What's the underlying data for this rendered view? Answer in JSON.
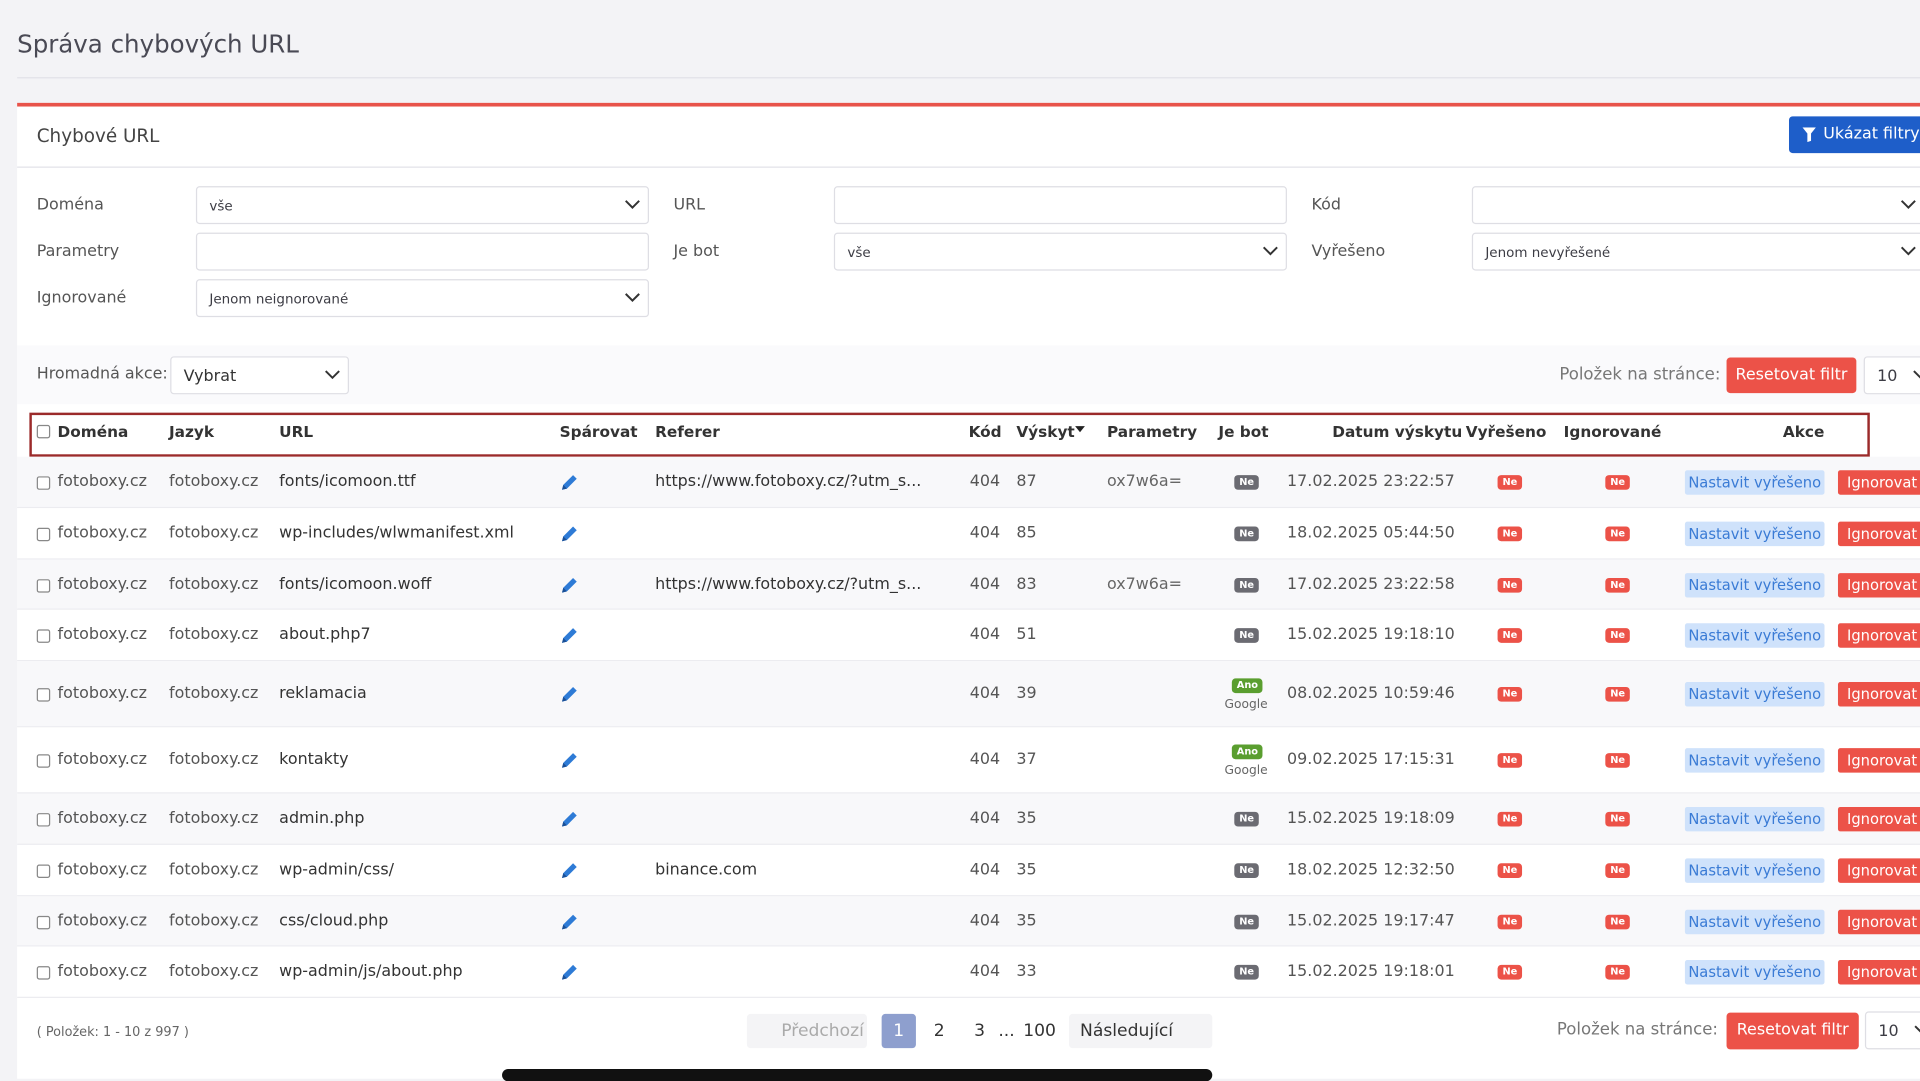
{
  "header": {
    "title": "Správa chybových URL"
  },
  "panel": {
    "title": "Chybové URL",
    "show_filters": "Ukázat filtry"
  },
  "filters": [
    {
      "label": "Doména",
      "value": "vše",
      "type": "select"
    },
    {
      "label": "URL",
      "type": "input"
    },
    {
      "label": "Kód",
      "type": "select"
    },
    {
      "label": "Parametry",
      "type": "input"
    },
    {
      "label": "Je bot",
      "value": "vše",
      "type": "select"
    },
    {
      "label": "Vyřešeno",
      "value": "Jenom nevyřešené",
      "type": "select"
    },
    {
      "label": "Ignorované",
      "value": "Jenom neignorované",
      "type": "select"
    }
  ],
  "toolbar": {
    "bulk_label": "Hromadná akce:",
    "bulk_value": "Vybrat",
    "per_page_label": "Položek na stránce:",
    "reset": "Resetovat filtr",
    "per_page": "10"
  },
  "table": {
    "columns": [
      "Doména",
      "Jazyk",
      "URL",
      "Spárovat",
      "Referer",
      "Kód",
      "Výskyt",
      "Parametry",
      "Je bot",
      "Datum výskytu",
      "Vyřešeno",
      "Ignorované",
      "Akce"
    ],
    "row_actions": [
      "Nastavit vyřešeno",
      "Ignorovat"
    ],
    "rows": [
      {
        "domain": "fotoboxy.cz",
        "lang": "fotoboxy.cz",
        "url": "fonts/icomoon.ttf",
        "referer": "https://www.fotoboxy.cz/?utm_s...",
        "code": 404,
        "count": 87,
        "params": "ox7w6a=",
        "bot": "Ne",
        "date": "17.02.2025 23:22:57",
        "solved": "Ne",
        "ignored": "Ne"
      },
      {
        "domain": "fotoboxy.cz",
        "lang": "fotoboxy.cz",
        "url": "wp-includes/wlwmanifest.xml",
        "code": 404,
        "count": 85,
        "bot": "Ne",
        "date": "18.02.2025 05:44:50",
        "solved": "Ne",
        "ignored": "Ne"
      },
      {
        "domain": "fotoboxy.cz",
        "lang": "fotoboxy.cz",
        "url": "fonts/icomoon.woff",
        "referer": "https://www.fotoboxy.cz/?utm_s...",
        "code": 404,
        "count": 83,
        "params": "ox7w6a=",
        "bot": "Ne",
        "date": "17.02.2025 23:22:58",
        "solved": "Ne",
        "ignored": "Ne"
      },
      {
        "domain": "fotoboxy.cz",
        "lang": "fotoboxy.cz",
        "url": "about.php7",
        "code": 404,
        "count": 51,
        "bot": "Ne",
        "date": "15.02.2025 19:18:10",
        "solved": "Ne",
        "ignored": "Ne"
      },
      {
        "domain": "fotoboxy.cz",
        "lang": "fotoboxy.cz",
        "url": "reklamacia",
        "code": 404,
        "count": 39,
        "bot": "Ano",
        "bot_name": "Google",
        "date": "08.02.2025 10:59:46",
        "solved": "Ne",
        "ignored": "Ne"
      },
      {
        "domain": "fotoboxy.cz",
        "lang": "fotoboxy.cz",
        "url": "kontakty",
        "code": 404,
        "count": 37,
        "bot": "Ano",
        "bot_name": "Google",
        "date": "09.02.2025 17:15:31",
        "solved": "Ne",
        "ignored": "Ne"
      },
      {
        "domain": "fotoboxy.cz",
        "lang": "fotoboxy.cz",
        "url": "admin.php",
        "code": 404,
        "count": 35,
        "bot": "Ne",
        "date": "15.02.2025 19:18:09",
        "solved": "Ne",
        "ignored": "Ne"
      },
      {
        "domain": "fotoboxy.cz",
        "lang": "fotoboxy.cz",
        "url": "wp-admin/css/",
        "referer": "binance.com",
        "code": 404,
        "count": 35,
        "bot": "Ne",
        "date": "18.02.2025 12:32:50",
        "solved": "Ne",
        "ignored": "Ne"
      },
      {
        "domain": "fotoboxy.cz",
        "lang": "fotoboxy.cz",
        "url": "css/cloud.php",
        "code": 404,
        "count": 35,
        "bot": "Ne",
        "date": "15.02.2025 19:17:47",
        "solved": "Ne",
        "ignored": "Ne"
      },
      {
        "domain": "fotoboxy.cz",
        "lang": "fotoboxy.cz",
        "url": "wp-admin/js/about.php",
        "code": 404,
        "count": 33,
        "bot": "Ne",
        "date": "15.02.2025 19:18:01",
        "solved": "Ne",
        "ignored": "Ne"
      }
    ]
  },
  "footer": {
    "summary": "( Položek: 1 - 10 z 997 )",
    "prev": "Předchozí",
    "pages": [
      "1",
      "2",
      "3",
      "...",
      "100"
    ],
    "next": "Následující",
    "per_page_label": "Položek na stránce:",
    "reset": "Resetovat filtr",
    "per_page": "10"
  }
}
